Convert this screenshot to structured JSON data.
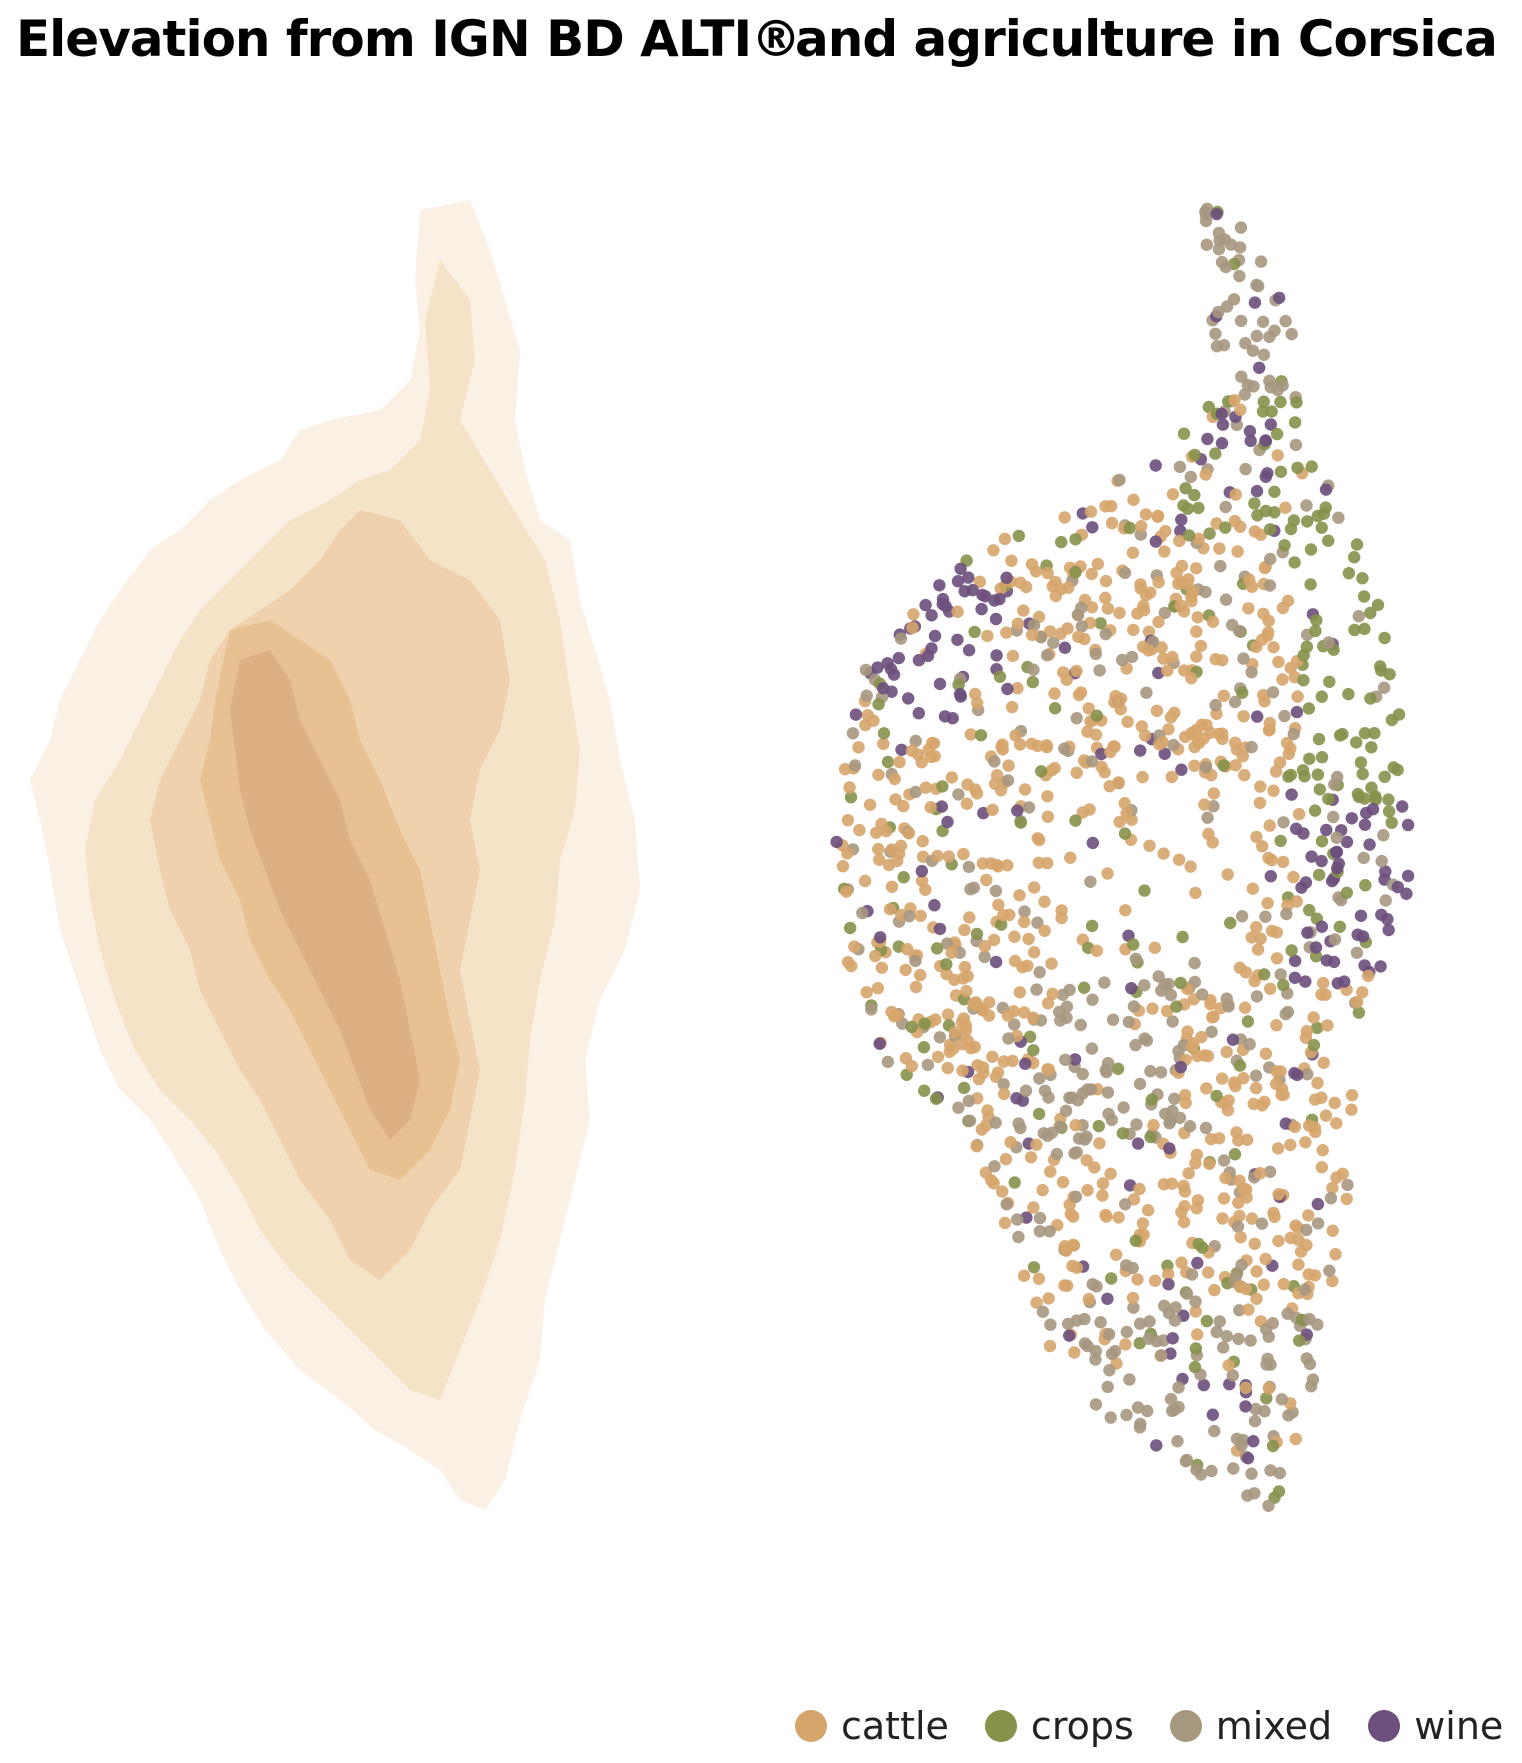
{
  "titles": {
    "left": "Elevation from IGN BD ALTI®",
    "right": "and agriculture in Corsica"
  },
  "palette": {
    "elevation": [
      "#faf1e4",
      "#f5e3c8",
      "#efd2ad",
      "#e8c193",
      "#d9aa7c"
    ],
    "cattle": "#d6a56b",
    "crops": "#86914a",
    "mixed": "#a6977f",
    "wine": "#6c4f7c"
  },
  "legend": {
    "items": [
      {
        "key": "cattle",
        "label": "cattle"
      },
      {
        "key": "crops",
        "label": "crops"
      },
      {
        "key": "mixed",
        "label": "mixed"
      },
      {
        "key": "wine",
        "label": "wine"
      }
    ]
  }
}
